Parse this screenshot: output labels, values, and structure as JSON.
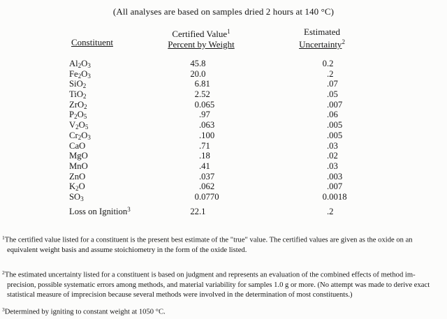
{
  "title": "(All analyses are based on samples dried 2 hours at 140 °C)",
  "table": {
    "headers": {
      "constituent": "Constituent",
      "certified_value": "Certified Value",
      "certified_sup": "1",
      "percent_by_weight": "Percent by Weight",
      "estimated": "Estimated",
      "uncertainty": "Uncertainty",
      "uncertainty_sup": "2"
    },
    "rows": [
      {
        "formula": "Al_2O_3",
        "value": "45.8",
        "uncertainty": "0.2"
      },
      {
        "formula": "Fe_2O_3",
        "value": "20.0",
        "uncertainty": ".2"
      },
      {
        "formula": "SiO_2",
        "value": "6.81",
        "uncertainty": ".07"
      },
      {
        "formula": "TiO_2",
        "value": "2.52",
        "uncertainty": ".05"
      },
      {
        "formula": "ZrO_2",
        "value": "0.065",
        "uncertainty": ".007"
      },
      {
        "formula": "P_2O_5",
        "value": ".97",
        "uncertainty": ".06"
      },
      {
        "formula": "V_2O_5",
        "value": ".063",
        "uncertainty": ".005"
      },
      {
        "formula": "Cr_2O_3",
        "value": ".100",
        "uncertainty": ".005"
      },
      {
        "formula": "CaO",
        "value": ".71",
        "uncertainty": ".03"
      },
      {
        "formula": "MgO",
        "value": ".18",
        "uncertainty": ".02"
      },
      {
        "formula": "MnO",
        "value": ".41",
        "uncertainty": ".03"
      },
      {
        "formula": "ZnO",
        "value": ".037",
        "uncertainty": ".003"
      },
      {
        "formula": "K_2O",
        "value": ".062",
        "uncertainty": ".007"
      },
      {
        "formula": "SO_3",
        "value": "0.0770",
        "uncertainty": "0.0018"
      }
    ],
    "loss_on_ignition": {
      "formula": "Loss on Ignition^3",
      "value": "22.1",
      "uncertainty": ".2"
    }
  },
  "footnotes": [
    {
      "sup": "1",
      "lines": [
        "The certified value listed for a constituent is the present best estimate of the \"true\" value.  The certified values are given as the oxide on an",
        "equivalent weight basis and assume stoichiometry in the form of the oxide listed."
      ]
    },
    {
      "sup": "2",
      "lines": [
        "The estimated uncertainty listed for a constituent is based on judgment and represents an evaluation of the combined effects of method im-",
        "precision, possible systematic errors among methods, and material variability for samples 1.0 g or more.  (No attempt was made to derive exact",
        "statistical measure of imprecision because several methods were involved in the determination of most constituents.)"
      ]
    },
    {
      "sup": "3",
      "lines": [
        "Determined by igniting to constant weight at 1050 °C."
      ]
    }
  ]
}
